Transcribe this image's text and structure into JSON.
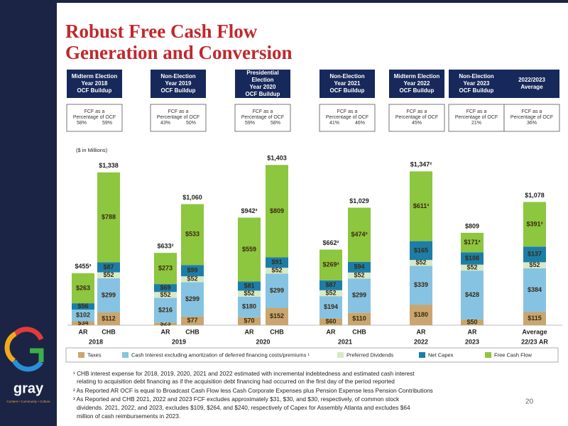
{
  "title_lines": [
    "Robust Free Cash Flow",
    "Generation and Conversion"
  ],
  "header_boxes": [
    {
      "title": [
        "Midterm Election",
        "Year 2018",
        "OCF Buildup"
      ],
      "fcf_label": [
        "FCF as a",
        "Percentage of OCF"
      ],
      "pcts": [
        "58%",
        "59%"
      ]
    },
    {
      "title": [
        "Non-Election",
        "Year 2019",
        "OCF Buildup"
      ],
      "fcf_label": [
        "FCF as a",
        "Percentage of OCF"
      ],
      "pcts": [
        "43%",
        "50%"
      ]
    },
    {
      "title": [
        "Presidential",
        "Election",
        "Year 2020",
        "OCF Buildup"
      ],
      "fcf_label": [
        "FCF as a",
        "Percentage of OCF"
      ],
      "pcts": [
        "59%",
        "58%"
      ]
    },
    {
      "title": [
        "Non-Election",
        "Year 2021",
        "OCF Buildup"
      ],
      "fcf_label": [
        "FCF as a",
        "Percentage of OCF"
      ],
      "pcts": [
        "41%",
        "46%"
      ]
    },
    {
      "title": [
        "Midterm Election",
        "Year 2022",
        "OCF Buildup"
      ],
      "fcf_label": [
        "FCF as a",
        "Percentage of OCF"
      ],
      "pcts": [
        "45%"
      ]
    },
    {
      "title": [
        "Non-Election",
        "Year 2023",
        "OCF Buildup"
      ],
      "fcf_label": [
        "FCF as a",
        "Percentage of OCF"
      ],
      "pcts": [
        "21%"
      ]
    },
    {
      "title": [
        "2022/2023",
        "Average"
      ],
      "fcf_label": [
        "FCF as a",
        "Percentage of OCF"
      ],
      "pcts": [
        "36%"
      ]
    }
  ],
  "chart_data": {
    "type": "stacked_bar",
    "unit_label": "($ in Millions)",
    "groups": [
      {
        "label": "2018",
        "categories": [
          "AR",
          "CHB"
        ]
      },
      {
        "label": "2019",
        "categories": [
          "AR",
          "CHB"
        ]
      },
      {
        "label": "2020",
        "categories": [
          "AR",
          "CHB"
        ]
      },
      {
        "label": "2021",
        "categories": [
          "AR",
          "CHB"
        ]
      },
      {
        "label": "2022",
        "categories": [
          "AR"
        ]
      },
      {
        "label": "2023",
        "categories": [
          "AR"
        ]
      },
      {
        "label": "22/23 AR",
        "categories": [
          "Average"
        ]
      }
    ],
    "ylim": [
      0,
      1430
    ],
    "series": [
      {
        "name": "Taxes",
        "color": "#c9a66f",
        "values": [
          34,
          112,
          23,
          77,
          70,
          152,
          60,
          110,
          180,
          50,
          115
        ],
        "value_labels": [
          "$34",
          "$112",
          "$23",
          "$77",
          "$70",
          "$152",
          "$60",
          "$110",
          "$180",
          "$50",
          "$115"
        ]
      },
      {
        "name": "Cash Interest excluding amortization of deferred financing costs/premiums ¹",
        "color": "#86c3e3",
        "values": [
          102,
          299,
          216,
          299,
          180,
          299,
          194,
          299,
          339,
          428,
          384
        ],
        "value_labels": [
          "$102",
          "$299",
          "$216",
          "$299",
          "$180",
          "$299",
          "$194",
          "$299",
          "$339",
          "$428",
          "$384"
        ]
      },
      {
        "name": "Preferred Dividends",
        "color": "#d9e9c6",
        "values": [
          null,
          52,
          52,
          52,
          52,
          52,
          52,
          52,
          52,
          52,
          52
        ],
        "value_labels": [
          null,
          "$52",
          "$52",
          "$52",
          "$52",
          "$52",
          "$52",
          "$52",
          "$52",
          "$52",
          "$52"
        ]
      },
      {
        "name": "Net Capex",
        "color": "#1c7ea8",
        "values": [
          56,
          87,
          69,
          99,
          81,
          91,
          87,
          94,
          165,
          108,
          137
        ],
        "value_labels": [
          "$56",
          "$87",
          "$69",
          "$99",
          "$81",
          "$91",
          "$87",
          "$94",
          "$165",
          "$108",
          "$137"
        ]
      },
      {
        "name": "Free Cash Flow",
        "color": "#8dc63f",
        "values": [
          263,
          788,
          273,
          533,
          559,
          809,
          269,
          474,
          611,
          171,
          391
        ],
        "value_labels": [
          "$263",
          "$788",
          "$273",
          "$533",
          "$559",
          "$809",
          "$269³",
          "$474³",
          "$611³",
          "$171³",
          "$391³"
        ]
      }
    ],
    "totals": {
      "values": [
        455,
        1338,
        633,
        1060,
        942,
        1403,
        662,
        1029,
        1347,
        809,
        1078
      ],
      "value_labels": [
        "$455²",
        "$1,338",
        "$633²",
        "$1,060",
        "$942²",
        "$1,403",
        "$662²",
        "$1,029",
        "$1,347²",
        "$809",
        "$1,078"
      ]
    }
  },
  "footnotes": [
    "¹ CHB interest expense for 2018, 2019, 2020, 2021 and 2022 estimated with incremental indebtedness and estimated cash interest",
    "relating to acquisition debt financing as if the acquisition debt financing had occurred on the first day of the period reported",
    "² As Reported AR OCF is equal to Broadcast Cash Flow less Cash Corporate Expenses plus Pension Expense less Pension Contributions",
    "³ As Reported and CHB 2021, 2022 and 2023 FCF excludes approximately $31, $30, and $30, respectively, of common stock",
    "dividends. 2021, 2022, and 2023, excludes $109, $264, and $240, respectively of Capex for Assembly Atlanta and excludes $64",
    "million of cash reimbursements in 2023."
  ],
  "logo": {
    "name": "gray",
    "tagline": "Content • Community • Culture"
  },
  "page_number": "20"
}
